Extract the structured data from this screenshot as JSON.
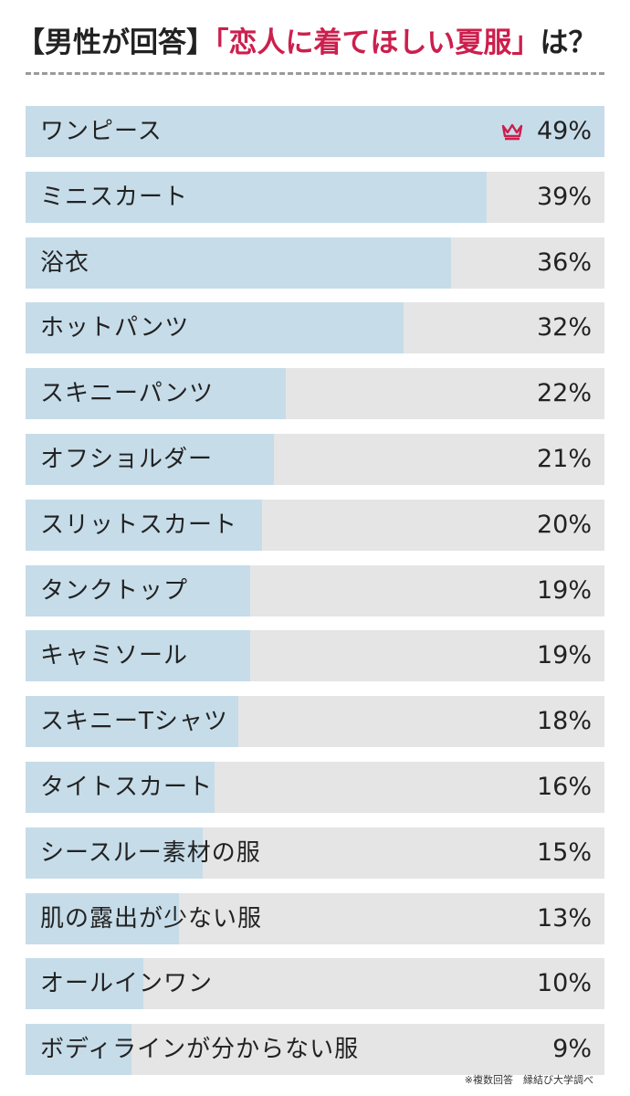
{
  "title": {
    "prefix": "【男性が回答】",
    "highlight": "「恋人に着てほしい夏服」",
    "suffix": "は？"
  },
  "footnote": "※複数回答　縁結び大学調べ",
  "colors": {
    "bar_fill": "#c6dce9",
    "track": "#e5e5e5",
    "accent": "#cc1f4d",
    "text": "#222222"
  },
  "top_icon": "crown-icon",
  "chart_data": {
    "type": "bar",
    "orientation": "horizontal",
    "categories": [
      "ワンピース",
      "ミニスカート",
      "浴衣",
      "ホットパンツ",
      "スキニーパンツ",
      "オフショルダー",
      "スリットスカート",
      "タンクトップ",
      "キャミソール",
      "スキニーTシャツ",
      "タイトスカート",
      "シースルー素材の服",
      "肌の露出が少ない服",
      "オールインワン",
      "ボディラインが分からない服"
    ],
    "values": [
      49,
      39,
      36,
      32,
      22,
      21,
      20,
      19,
      19,
      18,
      16,
      15,
      13,
      10,
      9
    ],
    "value_labels": [
      "49%",
      "39%",
      "36%",
      "32%",
      "22%",
      "21%",
      "20%",
      "19%",
      "19%",
      "18%",
      "16%",
      "15%",
      "13%",
      "10%",
      "9%"
    ],
    "unit": "%",
    "xlim": [
      0,
      49
    ],
    "grid": false,
    "legend": "none"
  }
}
